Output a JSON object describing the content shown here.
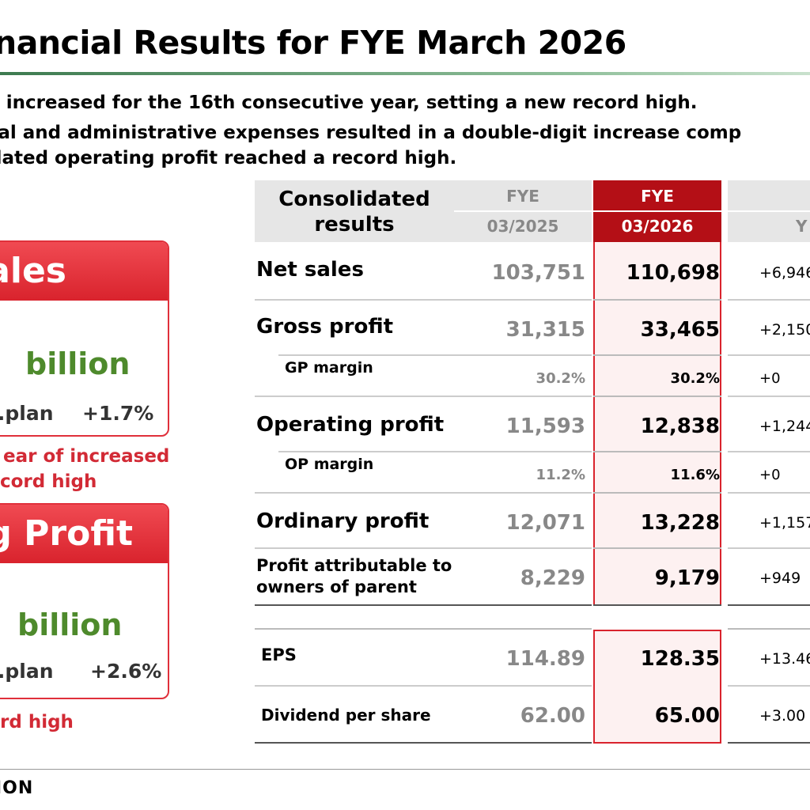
{
  "title": "nancial Results for FYE March 2026",
  "bullets": [
    "s increased for the 16th consecutive year, setting a new record high.",
    "ral and administrative expenses resulted in a double-digit increase comp",
    "dated operating profit reached a record high."
  ],
  "cards": [
    {
      "header": "ales",
      "fragment": ")",
      "unit": "billion",
      "vs_label": "s.plan",
      "vs_value": "+1.7%",
      "notes": [
        "ear of increased",
        "cord high"
      ]
    },
    {
      "header": "g Profit",
      "unit": "billion",
      "vs_label": "s.plan",
      "vs_value": "+2.6%",
      "notes": [
        "rd high"
      ]
    }
  ],
  "table": {
    "header": {
      "label_line1": "Consolidated",
      "label_line2": "results",
      "prev_line1": "FYE",
      "prev_line2": "03/2025",
      "cur_line1": "FYE",
      "cur_line2": "03/2026",
      "yoy_line2": "Y"
    },
    "rows": [
      {
        "label": "Net sales",
        "prev": "103,751",
        "cur": "110,698",
        "yoy": "+6,946"
      },
      {
        "label": "Gross profit",
        "prev": "31,315",
        "cur": "33,465",
        "yoy": "+2,150"
      },
      {
        "label": "GP margin",
        "prev": "30.2%",
        "cur": "30.2%",
        "yoy": "+0"
      },
      {
        "label": "Operating profit",
        "prev": "11,593",
        "cur": "12,838",
        "yoy": "+1,244"
      },
      {
        "label": "OP margin",
        "prev": "11.2%",
        "cur": "11.6%",
        "yoy": "+0"
      },
      {
        "label": "Ordinary profit",
        "prev": "12,071",
        "cur": "13,228",
        "yoy": "+1,157"
      },
      {
        "label1": "Profit attributable to",
        "label2": "owners of parent",
        "prev": "8,229",
        "cur": "9,179",
        "yoy": "+949"
      },
      {
        "label": "EPS",
        "prev": "114.89",
        "cur": "128.35",
        "yoy": "+13.46"
      },
      {
        "label": "Dividend per share",
        "prev": "62.00",
        "cur": "65.00",
        "yoy": "+3.00"
      }
    ]
  },
  "footer_logo": "ION"
}
